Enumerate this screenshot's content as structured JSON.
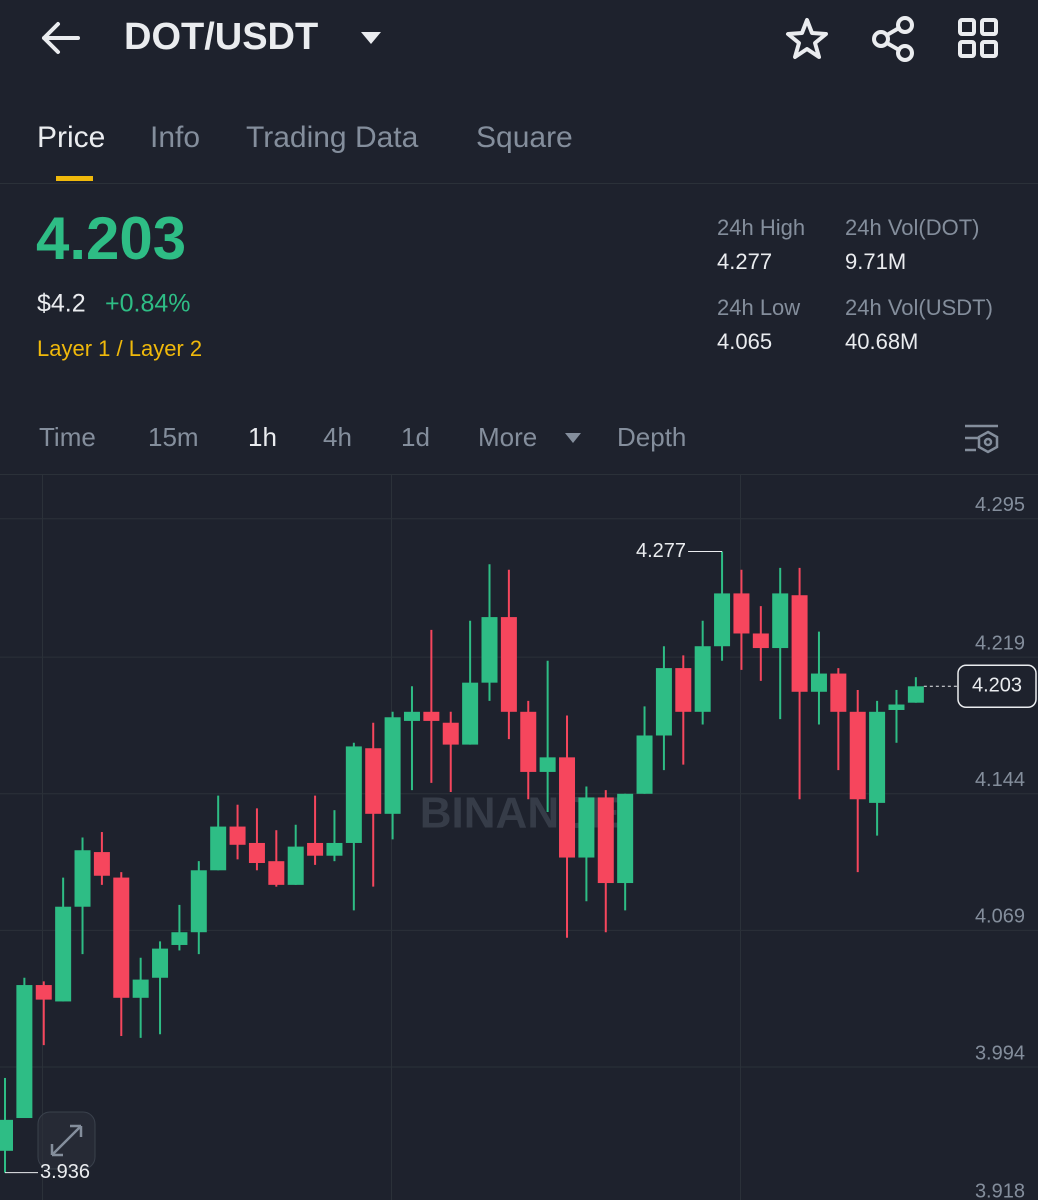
{
  "header": {
    "pair": "DOT/USDT"
  },
  "tabs": [
    "Price",
    "Info",
    "Trading Data",
    "Square"
  ],
  "market": {
    "price": "4.203",
    "fiat_price": "$4.2",
    "change": "+0.84%",
    "tag": "Layer 1 / Layer 2",
    "stats": [
      {
        "label": "24h High",
        "value": "4.277"
      },
      {
        "label": "24h Vol(DOT)",
        "value": "9.71M"
      },
      {
        "label": "24h Low",
        "value": "4.065"
      },
      {
        "label": "24h Vol(USDT)",
        "value": "40.68M"
      }
    ]
  },
  "intervals": [
    "Time",
    "15m",
    "1h",
    "4h",
    "1d",
    "More",
    "Depth"
  ],
  "watermark": "BINANCE",
  "chart_data": {
    "type": "candlestick",
    "up_color": "#2ebd85",
    "down_color": "#f6465d",
    "ylim": [
      3.921,
      4.319
    ],
    "yticks": [
      4.295,
      4.219,
      4.144,
      4.069,
      3.994,
      3.918
    ],
    "grid": true,
    "open": [
      3.948,
      3.966,
      4.039,
      4.03,
      4.082,
      4.112,
      4.098,
      4.032,
      4.043,
      4.061,
      4.068,
      4.102,
      4.126,
      4.117,
      4.107,
      4.094,
      4.117,
      4.11,
      4.117,
      4.169,
      4.133,
      4.184,
      4.189,
      4.183,
      4.171,
      4.205,
      4.241,
      4.189,
      4.156,
      4.164,
      4.109,
      4.142,
      4.095,
      4.144,
      4.176,
      4.213,
      4.189,
      4.225,
      4.254,
      4.232,
      4.224,
      4.253,
      4.2,
      4.21,
      4.189,
      4.139,
      4.19,
      4.194
    ],
    "high": [
      3.988,
      4.043,
      4.041,
      4.098,
      4.12,
      4.123,
      4.101,
      4.054,
      4.063,
      4.083,
      4.107,
      4.143,
      4.138,
      4.136,
      4.124,
      4.127,
      4.143,
      4.135,
      4.172,
      4.183,
      4.189,
      4.203,
      4.234,
      4.189,
      4.239,
      4.27,
      4.267,
      4.195,
      4.217,
      4.187,
      4.148,
      4.146,
      4.144,
      4.192,
      4.225,
      4.22,
      4.239,
      4.277,
      4.267,
      4.247,
      4.268,
      4.268,
      4.233,
      4.213,
      4.201,
      4.195,
      4.201,
      4.208
    ],
    "low": [
      3.936,
      3.966,
      4.006,
      4.03,
      4.056,
      4.094,
      4.011,
      4.01,
      4.012,
      4.058,
      4.056,
      4.102,
      4.108,
      4.102,
      4.093,
      4.094,
      4.105,
      4.107,
      4.08,
      4.093,
      4.119,
      4.146,
      4.15,
      4.145,
      4.171,
      4.195,
      4.174,
      4.141,
      4.134,
      4.065,
      4.085,
      4.068,
      4.08,
      4.144,
      4.157,
      4.16,
      4.182,
      4.217,
      4.212,
      4.206,
      4.185,
      4.141,
      4.182,
      4.157,
      4.101,
      4.121,
      4.172,
      4.194
    ],
    "close": [
      3.965,
      4.039,
      4.031,
      4.082,
      4.113,
      4.099,
      4.032,
      4.042,
      4.059,
      4.068,
      4.102,
      4.126,
      4.116,
      4.106,
      4.094,
      4.115,
      4.11,
      4.117,
      4.17,
      4.133,
      4.186,
      4.189,
      4.184,
      4.171,
      4.205,
      4.241,
      4.189,
      4.156,
      4.164,
      4.109,
      4.142,
      4.095,
      4.144,
      4.176,
      4.213,
      4.189,
      4.225,
      4.254,
      4.232,
      4.224,
      4.254,
      4.2,
      4.21,
      4.189,
      4.141,
      4.189,
      4.193,
      4.203
    ]
  }
}
